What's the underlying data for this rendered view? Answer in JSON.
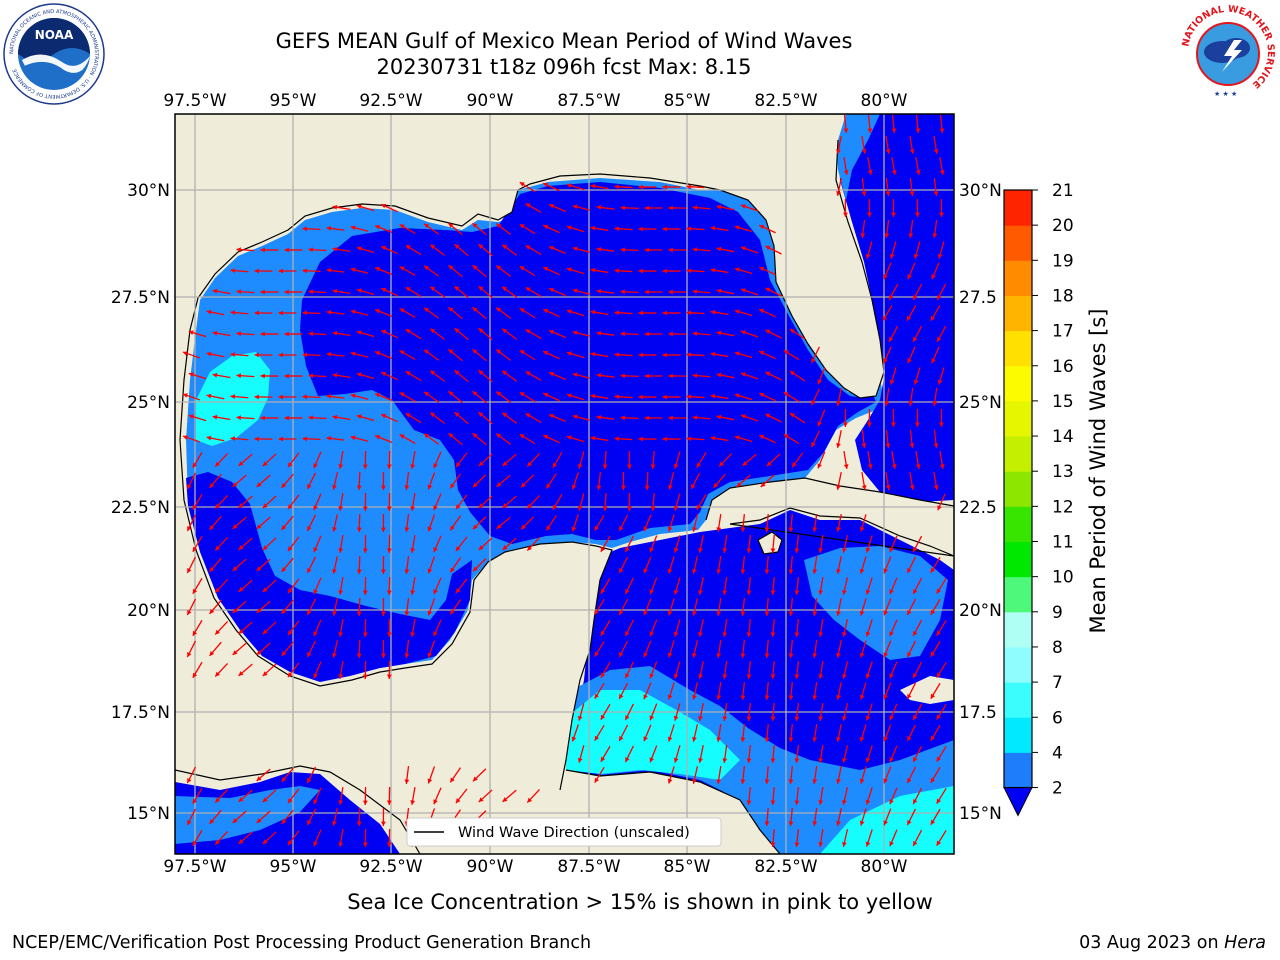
{
  "title": {
    "line1": "GEFS MEAN Gulf of Mexico Mean Period of Wind Waves",
    "line2": "20230731 t18z 096h fcst   Max: 8.15"
  },
  "map": {
    "lon_labels": [
      "97.5°W",
      "95°W",
      "92.5°W",
      "90°W",
      "87.5°W",
      "85°W",
      "82.5°W",
      "80°W"
    ],
    "lat_labels": [
      "30°N",
      "27.5°N",
      "25°N",
      "22.5°N",
      "20°N",
      "17.5°N",
      "15°N"
    ],
    "lat_labels_right": [
      "30°N",
      "27.5",
      "25°N",
      "22.5",
      "20°N",
      "17.5",
      "15°N"
    ],
    "legend_label": "Wind Wave Direction (unscaled)",
    "colors": {
      "land": "#efedd9",
      "deep_blue": "#0000f2",
      "mid_blue": "#1e8bfe",
      "cyan": "#16fdfd",
      "light_cyan": "#9bfdf6",
      "arrow": "#ff0000",
      "grid": "#b0b0b0"
    }
  },
  "colorbar": {
    "label": "Mean Period of Wind Waves [s]",
    "ticks": [
      "2",
      "4",
      "6",
      "7",
      "8",
      "9",
      "10",
      "11",
      "12",
      "13",
      "14",
      "15",
      "16",
      "17",
      "18",
      "19",
      "20",
      "21"
    ],
    "colors": [
      "#1e7dfa",
      "#00e9ff",
      "#3cfdfd",
      "#8ffdfd",
      "#b0fff5",
      "#4ef87a",
      "#00e800",
      "#37e500",
      "#8ce600",
      "#c4f000",
      "#e6f500",
      "#fdfb00",
      "#ffe000",
      "#ffb400",
      "#ff8c00",
      "#ff5a00",
      "#ff2400"
    ],
    "under_color": "#0000f2"
  },
  "footer": {
    "note": "Sea Ice Concentration > 15% is shown in pink to yellow",
    "credit": "NCEP/EMC/Verification Post Processing Product Generation Branch",
    "date": "03 Aug 2023 on",
    "machine": "Hera"
  },
  "logos": {
    "noaa": {
      "text": "NOAA",
      "ring_text": "NATIONAL OCEANIC AND ATMOSPHERIC ADMINISTRATION · U.S. DEPARTMENT OF COMMERCE"
    },
    "nws": {
      "ring_text": "NATIONAL WEATHER SERVICE"
    }
  }
}
